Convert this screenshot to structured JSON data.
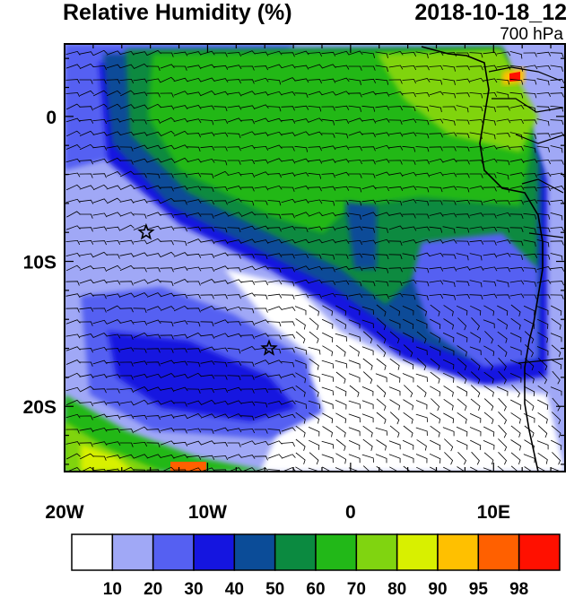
{
  "header": {
    "title": "Relative Humidity (%)",
    "datetime": "2018-10-18_12",
    "level": "700 hPa"
  },
  "axes": {
    "x_ticks": [
      {
        "value": -20,
        "label": "20W"
      },
      {
        "value": -10,
        "label": "10W"
      },
      {
        "value": 0,
        "label": "0"
      },
      {
        "value": 10,
        "label": "10E"
      }
    ],
    "y_ticks": [
      {
        "value": 0,
        "label": "0"
      },
      {
        "value": -10,
        "label": "10S"
      },
      {
        "value": -20,
        "label": "20S"
      }
    ],
    "lon_range": [
      -20,
      15
    ],
    "lat_range": [
      -24.5,
      5
    ]
  },
  "colorbar": {
    "labels": [
      "10",
      "20",
      "30",
      "40",
      "50",
      "60",
      "70",
      "80",
      "90",
      "95",
      "98"
    ],
    "colors": [
      "#ffffff",
      "#a0a8f6",
      "#5560f2",
      "#1515e0",
      "#0b4c98",
      "#0b8a40",
      "#22b818",
      "#80d410",
      "#d8f000",
      "#ffc000",
      "#ff6000",
      "#ff1000"
    ]
  },
  "markers": [
    {
      "name": "star",
      "lon": -14.3,
      "lat": -8
    },
    {
      "name": "star",
      "lon": -5.7,
      "lat": -16
    }
  ]
}
